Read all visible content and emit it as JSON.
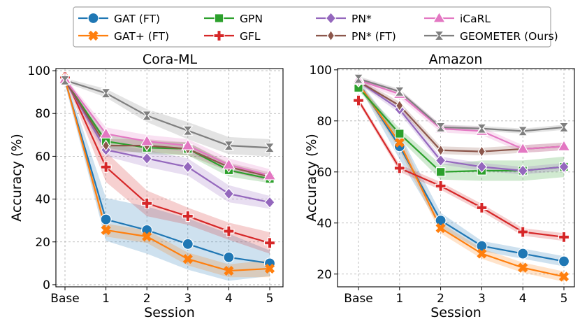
{
  "chart_data": [
    {
      "type": "line",
      "title": "Cora-ML",
      "xlabel": "Session",
      "ylabel": "Accuracy (%)",
      "categories": [
        "Base",
        "1",
        "2",
        "3",
        "4",
        "5"
      ],
      "ylim": [
        -1,
        101
      ],
      "yticks": [
        0,
        20,
        40,
        60,
        80,
        100
      ],
      "grid": true,
      "series": [
        {
          "name": "GAT (FT)",
          "color": "#1f77b4",
          "marker": "circle",
          "values": [
            95.5,
            30.5,
            25.5,
            19,
            12.8,
            10
          ],
          "band": [
            2,
            10,
            11,
            12,
            11,
            6
          ]
        },
        {
          "name": "GAT+ (FT)",
          "color": "#ff7f0e",
          "marker": "x",
          "values": [
            96,
            25.5,
            22.5,
            12,
            6.5,
            7.5
          ],
          "band": [
            1.5,
            3,
            3,
            3,
            3,
            4
          ]
        },
        {
          "name": "GPN",
          "color": "#2ca02c",
          "marker": "square",
          "values": [
            95.5,
            67,
            64,
            63.5,
            53.5,
            49.5
          ],
          "band": [
            1,
            3,
            3,
            3,
            3,
            2
          ]
        },
        {
          "name": "GFL",
          "color": "#d62728",
          "marker": "plus",
          "values": [
            97,
            55,
            38,
            32,
            25,
            19.5
          ],
          "band": [
            1,
            7,
            6,
            4,
            4,
            5
          ]
        },
        {
          "name": "PN*",
          "color": "#9467bd",
          "marker": "diamond",
          "values": [
            95.5,
            63,
            59,
            55,
            42.5,
            38.5
          ],
          "band": [
            1,
            3,
            4,
            4,
            4,
            3
          ]
        },
        {
          "name": "PN* (FT)",
          "color": "#8c564b",
          "marker": "thin_diamond",
          "values": [
            95.5,
            65,
            65,
            63.5,
            55,
            50.5
          ],
          "band": [
            1,
            3,
            3,
            3,
            2,
            2
          ]
        },
        {
          "name": "iCaRL",
          "color": "#e377c2",
          "marker": "triangle",
          "values": [
            96,
            70.5,
            67,
            65,
            56,
            51
          ],
          "band": [
            1,
            3,
            3,
            3,
            3,
            3
          ]
        },
        {
          "name": "GEOMETER (Ours)",
          "color": "#7f7f7f",
          "marker": "hourglass",
          "values": [
            95.5,
            89.5,
            79,
            72,
            65,
            64
          ],
          "band": [
            1,
            2,
            3,
            4,
            4,
            4
          ]
        }
      ]
    },
    {
      "type": "line",
      "title": "Amazon",
      "xlabel": "Session",
      "ylabel": "Accuracy (%)",
      "categories": [
        "Base",
        "1",
        "2",
        "3",
        "4",
        "5"
      ],
      "ylim": [
        15,
        100.5
      ],
      "yticks": [
        20,
        40,
        60,
        80,
        100
      ],
      "grid": true,
      "series": [
        {
          "name": "GAT (FT)",
          "color": "#1f77b4",
          "marker": "circle",
          "values": [
            95,
            70,
            41,
            31,
            28,
            25
          ],
          "band": [
            1,
            5,
            3,
            2,
            2,
            2
          ]
        },
        {
          "name": "GAT+ (FT)",
          "color": "#ff7f0e",
          "marker": "x",
          "values": [
            94.5,
            71.5,
            38,
            28,
            22.5,
            19
          ],
          "band": [
            1,
            3,
            2,
            2,
            2,
            2
          ]
        },
        {
          "name": "GPN",
          "color": "#2ca02c",
          "marker": "square",
          "values": [
            93,
            75,
            60,
            60.5,
            60.5,
            62
          ],
          "band": [
            1,
            2,
            3,
            4,
            4,
            4
          ]
        },
        {
          "name": "GFL",
          "color": "#d62728",
          "marker": "plus",
          "values": [
            88,
            61.5,
            54.5,
            46,
            36.5,
            34.5
          ],
          "band": [
            1,
            1.5,
            1.5,
            1.5,
            1.5,
            1.5
          ]
        },
        {
          "name": "PN*",
          "color": "#9467bd",
          "marker": "diamond",
          "values": [
            95.5,
            84.5,
            64.5,
            62,
            60.5,
            62
          ],
          "band": [
            1,
            1.5,
            1.5,
            1.5,
            1.5,
            1.5
          ]
        },
        {
          "name": "PN* (FT)",
          "color": "#8c564b",
          "marker": "thin_diamond",
          "values": [
            95.5,
            86,
            68.5,
            68,
            69,
            70
          ],
          "band": [
            1,
            1.5,
            1.5,
            1.5,
            1.5,
            1.5
          ]
        },
        {
          "name": "iCaRL",
          "color": "#e377c2",
          "marker": "triangle",
          "values": [
            96,
            90.5,
            77,
            76,
            69,
            70
          ],
          "band": [
            1,
            1.5,
            1.5,
            1.5,
            1.5,
            1.5
          ]
        },
        {
          "name": "GEOMETER (Ours)",
          "color": "#7f7f7f",
          "marker": "hourglass",
          "values": [
            96.5,
            91.5,
            77.5,
            77,
            76,
            77.5
          ],
          "band": [
            1,
            1,
            1,
            1,
            1,
            1
          ]
        }
      ]
    }
  ]
}
